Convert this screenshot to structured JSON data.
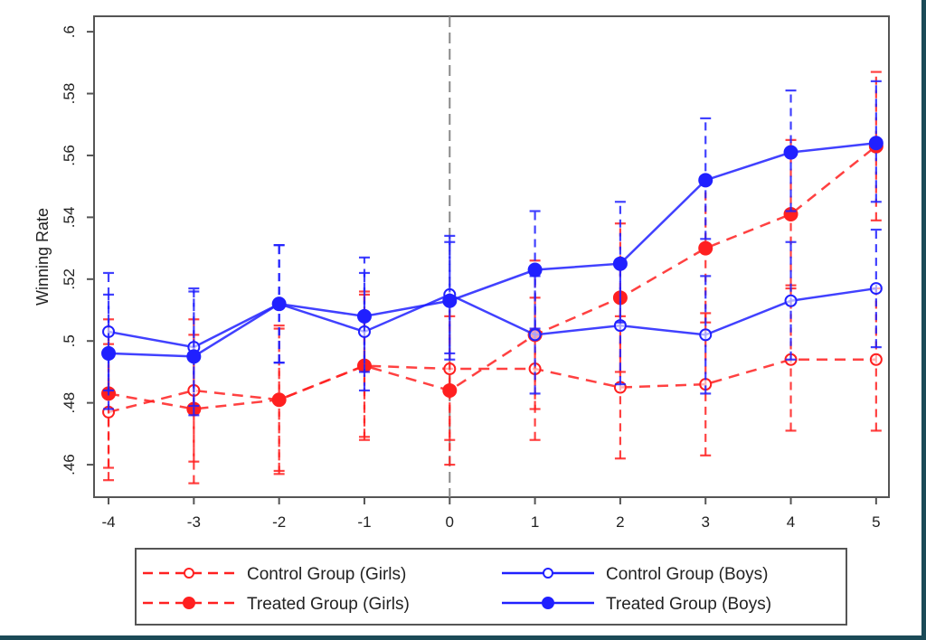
{
  "chart_data": {
    "type": "line",
    "title": "",
    "xlabel": "",
    "ylabel": "Winning Rate",
    "x": [
      -4,
      -3,
      -2,
      -1,
      0,
      1,
      2,
      3,
      4,
      5
    ],
    "x_tick_labels": [
      "-4",
      "-3",
      "-2",
      "-1",
      "0",
      "1",
      "2",
      "3",
      "4",
      "5"
    ],
    "y_ticks": [
      0.46,
      0.48,
      0.5,
      0.52,
      0.54,
      0.56,
      0.58,
      0.6
    ],
    "y_tick_labels": [
      ".46",
      ".48",
      ".5",
      ".52",
      ".54",
      ".56",
      ".58",
      ".6"
    ],
    "xlim": [
      -4.17,
      5.15
    ],
    "ylim": [
      0.4495,
      0.605
    ],
    "reference_line_x": 0,
    "grid": false,
    "legend_position": "bottom",
    "series": [
      {
        "name": "Control Group (Girls)",
        "color": "#ff2020",
        "line_style": "dashed",
        "marker": "hollow-circle",
        "values": [
          0.477,
          0.484,
          0.481,
          0.492,
          0.491,
          0.491,
          0.485,
          0.486,
          0.494,
          0.494
        ],
        "ci_low": [
          0.455,
          0.461,
          0.458,
          0.469,
          0.468,
          0.468,
          0.462,
          0.463,
          0.471,
          0.471
        ],
        "ci_high": [
          0.499,
          0.507,
          0.504,
          0.515,
          0.514,
          0.514,
          0.508,
          0.509,
          0.517,
          0.517
        ]
      },
      {
        "name": "Treated Group (Girls)",
        "color": "#ff2020",
        "line_style": "dashed",
        "marker": "filled-circle",
        "values": [
          0.483,
          0.478,
          0.481,
          0.492,
          0.484,
          0.502,
          0.514,
          0.53,
          0.541,
          0.563
        ],
        "ci_low": [
          0.459,
          0.454,
          0.457,
          0.468,
          0.46,
          0.478,
          0.49,
          0.506,
          0.518,
          0.539
        ],
        "ci_high": [
          0.507,
          0.502,
          0.505,
          0.516,
          0.508,
          0.526,
          0.538,
          0.553,
          0.565,
          0.587
        ]
      },
      {
        "name": "Control Group (Boys)",
        "color": "#2020ff",
        "line_style": "solid",
        "marker": "hollow-circle",
        "values": [
          0.503,
          0.498,
          0.512,
          0.503,
          0.515,
          0.502,
          0.505,
          0.502,
          0.513,
          0.517
        ],
        "ci_low": [
          0.484,
          0.479,
          0.493,
          0.484,
          0.496,
          0.483,
          0.486,
          0.483,
          0.494,
          0.498
        ],
        "ci_high": [
          0.522,
          0.517,
          0.531,
          0.522,
          0.534,
          0.521,
          0.524,
          0.521,
          0.532,
          0.536
        ]
      },
      {
        "name": "Treated Group (Boys)",
        "color": "#2020ff",
        "line_style": "solid",
        "marker": "filled-circle",
        "values": [
          0.496,
          0.495,
          0.512,
          0.508,
          0.513,
          0.523,
          0.525,
          0.552,
          0.561,
          0.564
        ],
        "ci_low": [
          0.478,
          0.476,
          0.493,
          0.49,
          0.494,
          0.504,
          0.506,
          0.533,
          0.542,
          0.545
        ],
        "ci_high": [
          0.515,
          0.516,
          0.531,
          0.527,
          0.532,
          0.542,
          0.545,
          0.572,
          0.581,
          0.584
        ]
      }
    ]
  }
}
